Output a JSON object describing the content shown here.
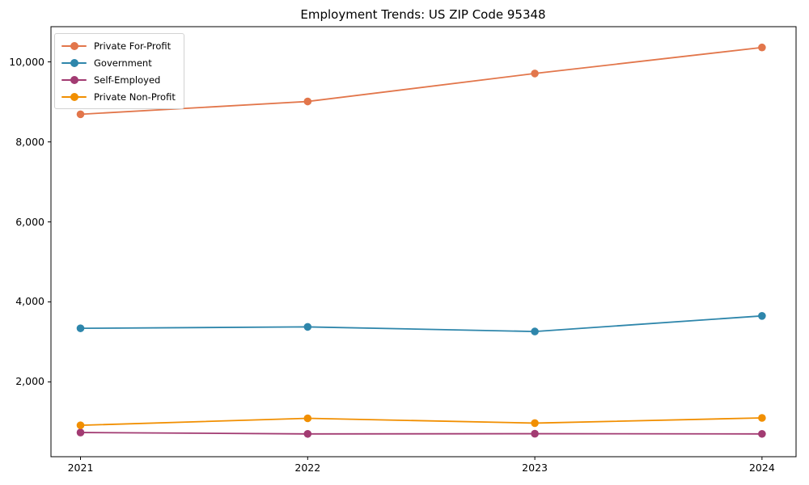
{
  "chart_data": {
    "type": "line",
    "title": "Employment Trends: US ZIP Code 95348",
    "xlabel": "",
    "ylabel": "",
    "x_values": [
      2021,
      2022,
      2023,
      2024
    ],
    "x_tick_labels": [
      "2021",
      "2022",
      "2023",
      "2024"
    ],
    "y_ticks": [
      {
        "value": 2000,
        "label": "2,000"
      },
      {
        "value": 4000,
        "label": "4,000"
      },
      {
        "value": 6000,
        "label": "6,000"
      },
      {
        "value": 8000,
        "label": "8,000"
      },
      {
        "value": 10000,
        "label": "10,000"
      }
    ],
    "xlim": [
      2020.87,
      2024.15
    ],
    "ylim": [
      130,
      10880
    ],
    "grid": false,
    "marker": "circle",
    "line_width": 1.8,
    "marker_radius": 4.8,
    "legend_position": "upper-left",
    "series": [
      {
        "name": "Private For-Profit",
        "color": "#e2764b",
        "values": [
          8690,
          9010,
          9710,
          10360
        ]
      },
      {
        "name": "Government",
        "color": "#2e86ab",
        "values": [
          3340,
          3375,
          3260,
          3650
        ]
      },
      {
        "name": "Self-Employed",
        "color": "#a23b72",
        "values": [
          735,
          700,
          705,
          700
        ]
      },
      {
        "name": "Private Non-Profit",
        "color": "#f18f01",
        "values": [
          915,
          1090,
          970,
          1100
        ]
      }
    ],
    "axes_color": "#000000",
    "background_color": "#ffffff"
  }
}
